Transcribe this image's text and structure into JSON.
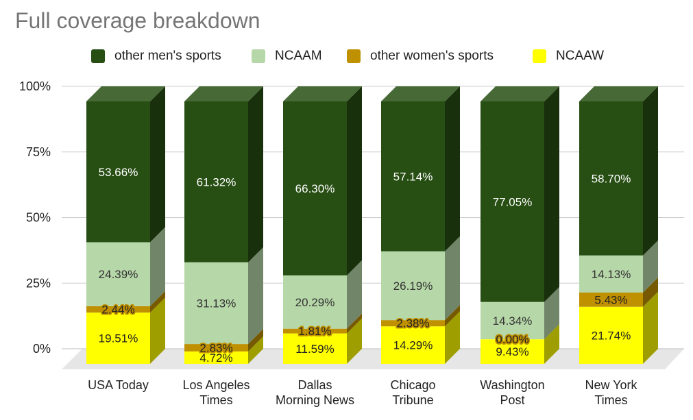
{
  "chart_data": {
    "type": "bar",
    "stacked": true,
    "percent_stacked": true,
    "three_d": true,
    "title": "Full coverage breakdown",
    "legend_position": "top",
    "categories": [
      [
        "USA Today"
      ],
      [
        "Los Angeles",
        "Times"
      ],
      [
        "Dallas",
        "Morning News"
      ],
      [
        "Chicago",
        "Tribune"
      ],
      [
        "Washington",
        "Post"
      ],
      [
        "New York",
        "Times"
      ]
    ],
    "y_ticks": [
      "0%",
      "25%",
      "50%",
      "75%",
      "100%"
    ],
    "ylim": [
      0,
      100
    ],
    "grid": true,
    "series": [
      {
        "name": "NCAAW",
        "color": "#ffff00",
        "values": [
          19.51,
          4.72,
          11.59,
          14.29,
          9.43,
          21.74
        ],
        "labels": [
          "19.51%",
          "4.72%",
          "11.59%",
          "14.29%",
          "9.43%",
          "21.74%"
        ]
      },
      {
        "name": "other women's sports",
        "color": "#bf9000",
        "values": [
          2.44,
          2.83,
          1.81,
          2.38,
          0.0,
          5.43
        ],
        "labels": [
          "2.44%",
          "2.83%",
          "1.81%",
          "2.38%",
          "0.00%",
          "5.43%"
        ]
      },
      {
        "name": "NCAAM",
        "color": "#b6d7a8",
        "values": [
          24.39,
          31.13,
          20.29,
          26.19,
          14.34,
          14.13
        ],
        "labels": [
          "24.39%",
          "31.13%",
          "20.29%",
          "26.19%",
          "14.34%",
          "14.13%"
        ]
      },
      {
        "name": "other men's sports",
        "color": "#274e13",
        "values": [
          53.66,
          61.32,
          66.3,
          57.14,
          77.05,
          58.7
        ],
        "labels": [
          "53.66%",
          "61.32%",
          "66.30%",
          "57.14%",
          "77.05%",
          "58.70%"
        ]
      }
    ],
    "legend_order": [
      "other men's sports",
      "NCAAM",
      "other women's sports",
      "NCAAW"
    ]
  }
}
